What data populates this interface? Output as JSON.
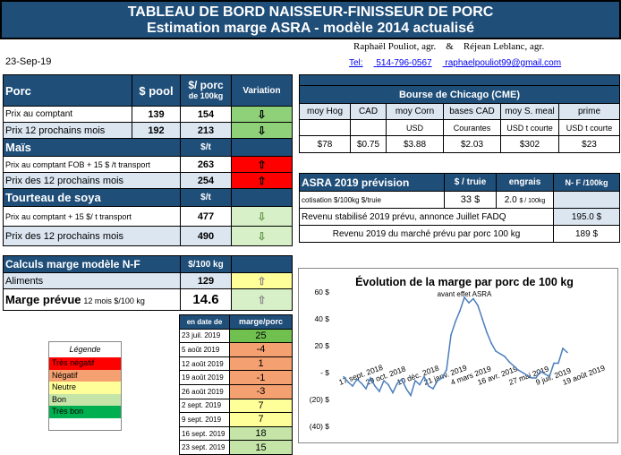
{
  "banner": {
    "title": "TABLEAU DE BORD NAISSEUR-FINISSEUR DE PORC",
    "subtitle": "Estimation marge ASRA - modèle 2014 actualisé"
  },
  "date": "23-Sep-19",
  "authors": "Raphaël Pouliot, agr.    &    Réjean Leblanc, agr.",
  "contact": {
    "tel_label": "Tel:",
    "tel": "514-796-0567",
    "email": "raphaelpouliot99@gmail.com"
  },
  "porc": {
    "title": "Porc",
    "col_pool": "$ pool",
    "col_porc": "$/ porc",
    "col_porc2": "de 100kg",
    "col_var": "Variation",
    "rows": [
      {
        "label": "Prix au comptant",
        "pool": "139",
        "porc": "154",
        "arrow": "⇩"
      },
      {
        "label": "Prix 12 prochains mois",
        "pool": "192",
        "porc": "213",
        "arrow": "⇩"
      }
    ]
  },
  "mais": {
    "title": "Maïs",
    "unit": "$/t",
    "rows": [
      {
        "label": "Prix au comptant FOB + 15 $ /t transport",
        "value": "263",
        "arrow": "⇧"
      },
      {
        "label": "Prix des 12 prochains mois",
        "value": "254",
        "arrow": "⇧"
      }
    ]
  },
  "soya": {
    "title": "Tourteau de soya",
    "unit": "$/t",
    "rows": [
      {
        "label": "Prix au comptant + 15 $/ t transport",
        "value": "477",
        "arrow": "⇩"
      },
      {
        "label": "Prix des 12 prochains mois",
        "value": "490",
        "arrow": "⇩"
      }
    ]
  },
  "calculs": {
    "title": "Calculs marge  modèle N-F",
    "unit": "$/100 kg",
    "aliments_label": "Aliments",
    "aliments_value": "129",
    "aliments_arrow": "⇧",
    "marge_label": "Marge prévue",
    "marge_sub": "12 mois  $/100 kg",
    "marge_value": "14.6",
    "marge_arrow": "⇧"
  },
  "chicago": {
    "title": "Bourse de Chicago (CME)",
    "cols": [
      "moy Hog",
      "CAD",
      "moy Corn",
      "bases CAD",
      "moy S. meal",
      "prime"
    ],
    "units": [
      "",
      "",
      "USD",
      "Courantes",
      "USD t courte",
      "USD t courte"
    ],
    "values": [
      "$78",
      "$0.75",
      "$3.88",
      "$2.03",
      "$302",
      "$23"
    ]
  },
  "asra": {
    "title": "ASRA 2019 prévision",
    "col1": "$ / truie",
    "col2": "engrais",
    "col3": "N- F /100kg",
    "cotisation_label": "cotisation $/100kg  $/truie",
    "cotisation_value": "33",
    "cotisation_unit": "$",
    "engrais_value": "2.0",
    "engrais_unit": "$ / 100kg",
    "rev1_label": "Revenu stabilisé 2019 prévu, annonce Juillet FADQ",
    "rev1_value": "195.0 $",
    "rev2_label": "Revenu  2019 du marché prévu par porc 100 kg",
    "rev2_value": "189 $"
  },
  "datetable": {
    "col_date": "en date de",
    "col_marge": "marge/porc",
    "rows": [
      {
        "date": "23 juil. 2019",
        "value": "25",
        "color": "#70c050"
      },
      {
        "date": "5 août 2019",
        "value": "-4",
        "color": "#f4a070"
      },
      {
        "date": "12 août 2019",
        "value": "1",
        "color": "#f4a070"
      },
      {
        "date": "19 août 2019",
        "value": "-1",
        "color": "#f4a070"
      },
      {
        "date": "26 août 2019",
        "value": "-3",
        "color": "#f4a070"
      },
      {
        "date": "2 sept. 2019",
        "value": "7",
        "color": "#ffff99"
      },
      {
        "date": "9 sept. 2019",
        "value": "7",
        "color": "#ffff99"
      },
      {
        "date": "16 sept. 2019",
        "value": "18",
        "color": "#c4e4a8"
      },
      {
        "date": "23 sept. 2019",
        "value": "15",
        "color": "#c4e4a8"
      }
    ]
  },
  "legend": {
    "title": "Légende",
    "items": [
      {
        "label": "Très négatif",
        "color": "#ff0000"
      },
      {
        "label": "Négatif",
        "color": "#f4a070"
      },
      {
        "label": "Neutre",
        "color": "#ffff99"
      },
      {
        "label": "Bon",
        "color": "#c4e4a8"
      },
      {
        "label": "Très bon",
        "color": "#00b050"
      }
    ]
  },
  "chart_data": {
    "type": "line",
    "title": "Évolution de la marge par porc de 100 kg",
    "annotation": "avant effet ASRA",
    "ylim": [
      -40,
      60
    ],
    "yticks": [
      "60 $",
      "40 $",
      "20 $",
      "- $",
      "(20) $",
      "(40) $"
    ],
    "ytick_values": [
      60,
      40,
      20,
      0,
      -20,
      -40
    ],
    "xticks": [
      "17 sept. 2018",
      "29 oct. 2018",
      "10 déc. 2018",
      "21 janv. 2019",
      "4 mars 2019",
      "16 avr. 2019",
      "27 mai 2019",
      "9 juil. 2019",
      "19 août 2019"
    ],
    "color": "#4a7ebb",
    "series": [
      {
        "values": [
          -3,
          -7,
          -10,
          -5,
          -8,
          -12,
          -4,
          -10,
          -14,
          -6,
          -9,
          -15,
          -8,
          -5,
          -12,
          -17,
          -6,
          -9,
          -3,
          -10,
          -12,
          -6,
          -4,
          2,
          28,
          38,
          46,
          56,
          52,
          55,
          50,
          40,
          30,
          22,
          16,
          14,
          12,
          8,
          5,
          2,
          0,
          -2,
          -4,
          -4,
          1,
          -1,
          -3,
          7,
          7,
          18,
          15
        ]
      }
    ]
  }
}
